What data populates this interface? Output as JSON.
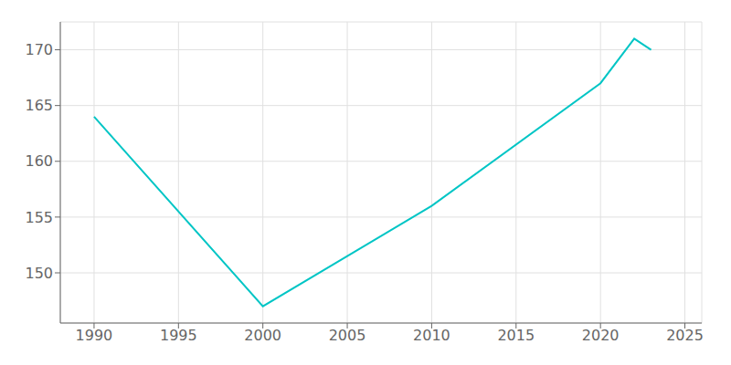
{
  "chart_data": {
    "type": "line",
    "x": [
      1990,
      2000,
      2010,
      2020,
      2022,
      2023
    ],
    "values": [
      164,
      147,
      156,
      167,
      171,
      170
    ],
    "color": "#00C5C5",
    "xlim": [
      1988,
      2026
    ],
    "ylim": [
      145.5,
      172.5
    ],
    "xticks": [
      1990,
      1995,
      2000,
      2005,
      2010,
      2015,
      2020,
      2025
    ],
    "yticks": [
      150,
      155,
      160,
      165,
      170
    ],
    "grid": true
  }
}
